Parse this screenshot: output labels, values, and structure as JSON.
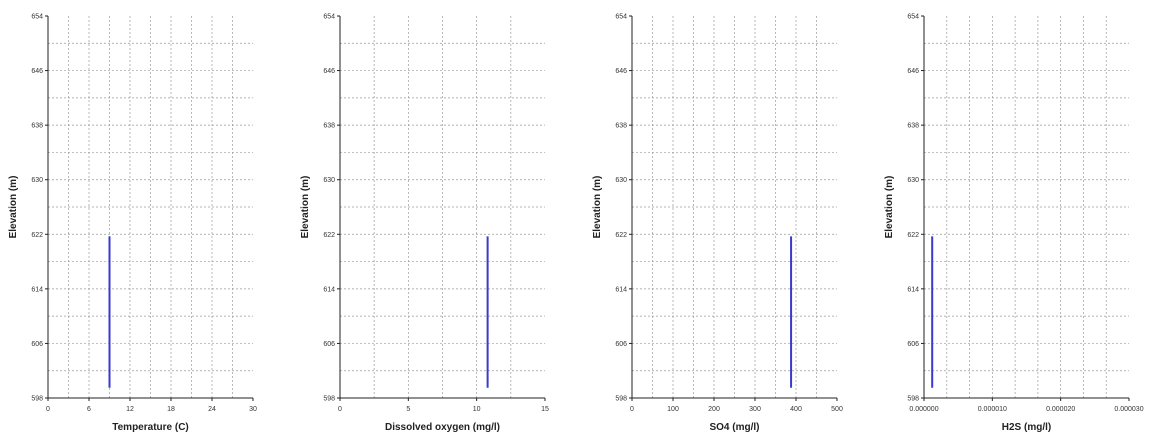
{
  "chart_data": [
    {
      "type": "line",
      "title": "",
      "xlabel": "Temperature (C)",
      "ylabel": "Elevation (m)",
      "xlim": [
        0,
        30
      ],
      "ylim": [
        598,
        654
      ],
      "xticks": [
        0,
        6,
        12,
        18,
        24,
        30
      ],
      "xtick_labels": [
        "0",
        "6",
        "12",
        "18",
        "24",
        "30"
      ],
      "yticks": [
        598,
        606,
        614,
        622,
        630,
        638,
        646,
        654
      ],
      "ytick_labels": [
        "598",
        "606",
        "614",
        "622",
        "630",
        "638",
        "646",
        "654"
      ],
      "x_minor_count": 2,
      "grid": true,
      "series": [
        {
          "x": [
            9,
            9
          ],
          "y": [
            599.5,
            621.7
          ],
          "color": "#3a3acc"
        }
      ]
    },
    {
      "type": "line",
      "title": "",
      "xlabel": "Dissolved oxygen (mg/l)",
      "ylabel": "Elevation (m)",
      "xlim": [
        0,
        15
      ],
      "ylim": [
        598,
        654
      ],
      "xticks": [
        0,
        5,
        10,
        15
      ],
      "xtick_labels": [
        "0",
        "5",
        "10",
        "15"
      ],
      "yticks": [
        598,
        606,
        614,
        622,
        630,
        638,
        646,
        654
      ],
      "ytick_labels": [
        "598",
        "606",
        "614",
        "622",
        "630",
        "638",
        "646",
        "654"
      ],
      "x_minor_count": 2,
      "grid": true,
      "series": [
        {
          "x": [
            10.8,
            10.8
          ],
          "y": [
            599.5,
            621.7
          ],
          "color": "#3a3acc"
        }
      ]
    },
    {
      "type": "line",
      "title": "",
      "xlabel": "SO4 (mg/l)",
      "ylabel": "Elevation (m)",
      "xlim": [
        0,
        500
      ],
      "ylim": [
        598,
        654
      ],
      "xticks": [
        0,
        100,
        200,
        300,
        400,
        500
      ],
      "xtick_labels": [
        "0",
        "100",
        "200",
        "300",
        "400",
        "500"
      ],
      "yticks": [
        598,
        606,
        614,
        622,
        630,
        638,
        646,
        654
      ],
      "ytick_labels": [
        "598",
        "606",
        "614",
        "622",
        "630",
        "638",
        "646",
        "654"
      ],
      "x_minor_count": 2,
      "grid": true,
      "series": [
        {
          "x": [
            388,
            388
          ],
          "y": [
            599.5,
            621.7
          ],
          "color": "#3a3acc"
        }
      ]
    },
    {
      "type": "line",
      "title": "",
      "xlabel": "H2S (mg/l)",
      "ylabel": "Elevation (m)",
      "xlim": [
        0,
        3e-05
      ],
      "ylim": [
        598,
        654
      ],
      "xticks": [
        0,
        1e-05,
        2e-05,
        3e-05
      ],
      "xtick_labels": [
        "0.000000",
        "0.000010",
        "0.000020",
        "0.000030"
      ],
      "yticks": [
        598,
        606,
        614,
        622,
        630,
        638,
        646,
        654
      ],
      "ytick_labels": [
        "598",
        "606",
        "614",
        "622",
        "630",
        "638",
        "646",
        "654"
      ],
      "x_minor_count": 3,
      "grid": true,
      "series": [
        {
          "x": [
            1.2e-06,
            1.2e-06
          ],
          "y": [
            599.5,
            621.7
          ],
          "color": "#3a3acc"
        }
      ]
    }
  ]
}
